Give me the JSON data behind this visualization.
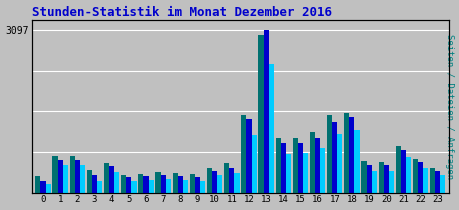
{
  "title": "Stunden-Statistik im Monat Dezember 2016",
  "ylabel_right": "Seiten / Dateien / Anfragen",
  "hours": [
    0,
    1,
    2,
    3,
    4,
    5,
    6,
    7,
    8,
    9,
    10,
    11,
    12,
    13,
    14,
    15,
    16,
    17,
    18,
    19,
    20,
    21,
    22,
    23
  ],
  "seiten": [
    220,
    620,
    620,
    340,
    500,
    290,
    310,
    330,
    310,
    290,
    420,
    480,
    1400,
    3097,
    940,
    950,
    1050,
    1350,
    1450,
    530,
    530,
    820,
    580,
    420
  ],
  "dateien": [
    310,
    700,
    700,
    440,
    570,
    330,
    360,
    390,
    370,
    350,
    480,
    570,
    1490,
    3000,
    1050,
    1050,
    1150,
    1480,
    1520,
    600,
    580,
    890,
    640,
    480
  ],
  "anfragen": [
    160,
    530,
    530,
    230,
    390,
    220,
    240,
    260,
    250,
    220,
    330,
    380,
    1100,
    2450,
    730,
    750,
    860,
    1120,
    1200,
    420,
    420,
    680,
    470,
    340
  ],
  "color_seiten": "#0000CC",
  "color_dateien": "#007070",
  "color_anfragen": "#00CCFF",
  "bg_color": "#C0C0C0",
  "title_color": "#0000CC",
  "ylabel_right_color": "#008080",
  "bar_width": 0.3,
  "ylim": [
    0,
    3300
  ],
  "ytick_val": 3097,
  "grid_levels": [
    775,
    1550,
    2325,
    3097
  ]
}
